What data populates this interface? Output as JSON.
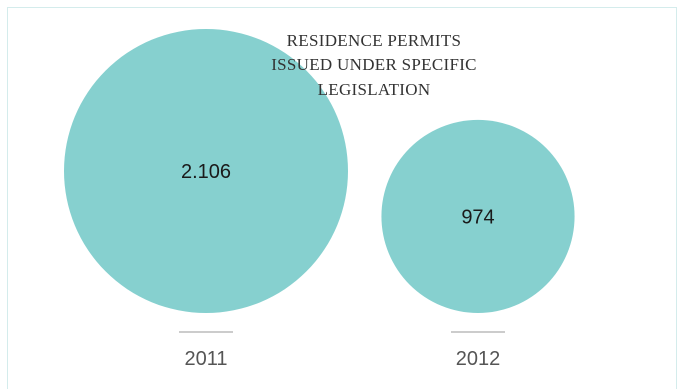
{
  "colors": {
    "bubble": "#86d0cf",
    "frame_border": "#d4ecec",
    "divider": "#999999"
  },
  "chart_data": {
    "type": "bubble",
    "title_lines": [
      "RESIDENCE PERMITS",
      "ISSUED UNDER SPECIFIC",
      "LEGISLATION"
    ],
    "categories": [
      "2011",
      "2012"
    ],
    "values": [
      2106,
      974
    ],
    "value_labels": [
      "2.106",
      "974"
    ]
  }
}
